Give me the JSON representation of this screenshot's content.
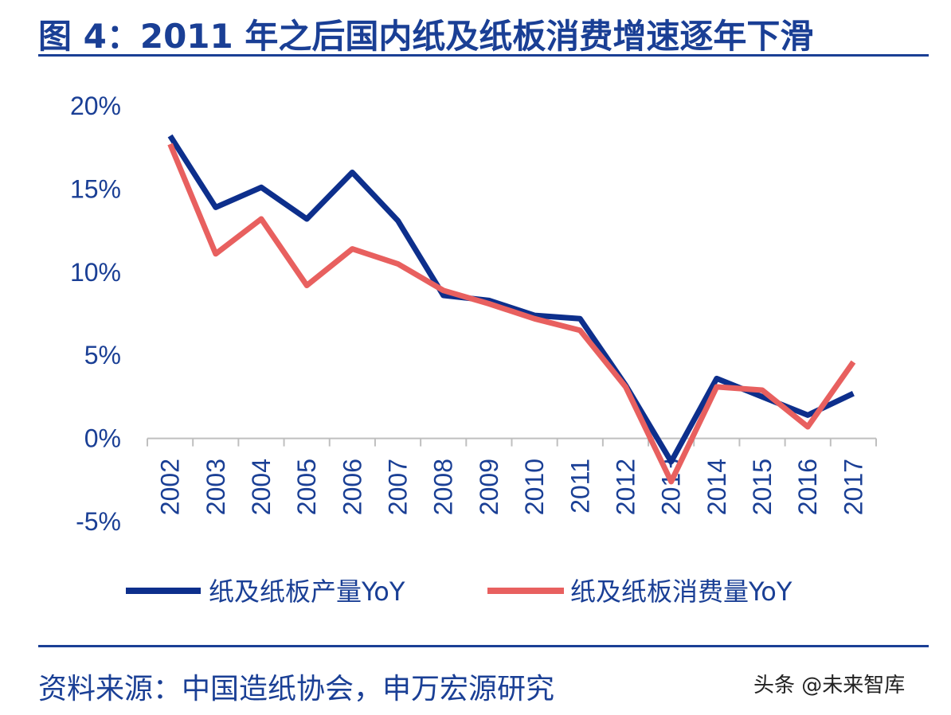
{
  "header": {
    "title": "图 4：2011 年之后国内纸及纸板消费增速逐年下滑"
  },
  "footer": {
    "source": "资料来源：中国造纸协会，申万宏源研究",
    "watermark": "头条 @未来智库"
  },
  "chart_data": {
    "type": "line",
    "title": "",
    "xlabel": "",
    "ylabel": "",
    "categories": [
      "2002",
      "2003",
      "2004",
      "2005",
      "2006",
      "2007",
      "2008",
      "2009",
      "2010",
      "2011",
      "2012",
      "2013",
      "2014",
      "2015",
      "2016",
      "2017"
    ],
    "yticks": [
      "20%",
      "15%",
      "10%",
      "5%",
      "0%",
      "-5%"
    ],
    "yticks_values": [
      20,
      15,
      10,
      5,
      0,
      -5
    ],
    "ylim": [
      -5,
      20
    ],
    "grid": false,
    "legend_position": "bottom",
    "series": [
      {
        "name": "纸及纸板产量YoY",
        "color": "#0d2f8c",
        "values": [
          18.2,
          13.9,
          15.1,
          13.2,
          16.0,
          13.1,
          8.6,
          8.3,
          7.4,
          7.2,
          3.2,
          -1.4,
          3.6,
          2.5,
          1.4,
          2.7
        ]
      },
      {
        "name": "纸及纸板消费量YoY",
        "color": "#e8605f",
        "values": [
          17.7,
          11.1,
          13.2,
          9.2,
          11.4,
          10.5,
          8.9,
          8.1,
          7.2,
          6.5,
          3.1,
          -2.6,
          3.1,
          2.9,
          0.7,
          4.6
        ]
      }
    ]
  }
}
